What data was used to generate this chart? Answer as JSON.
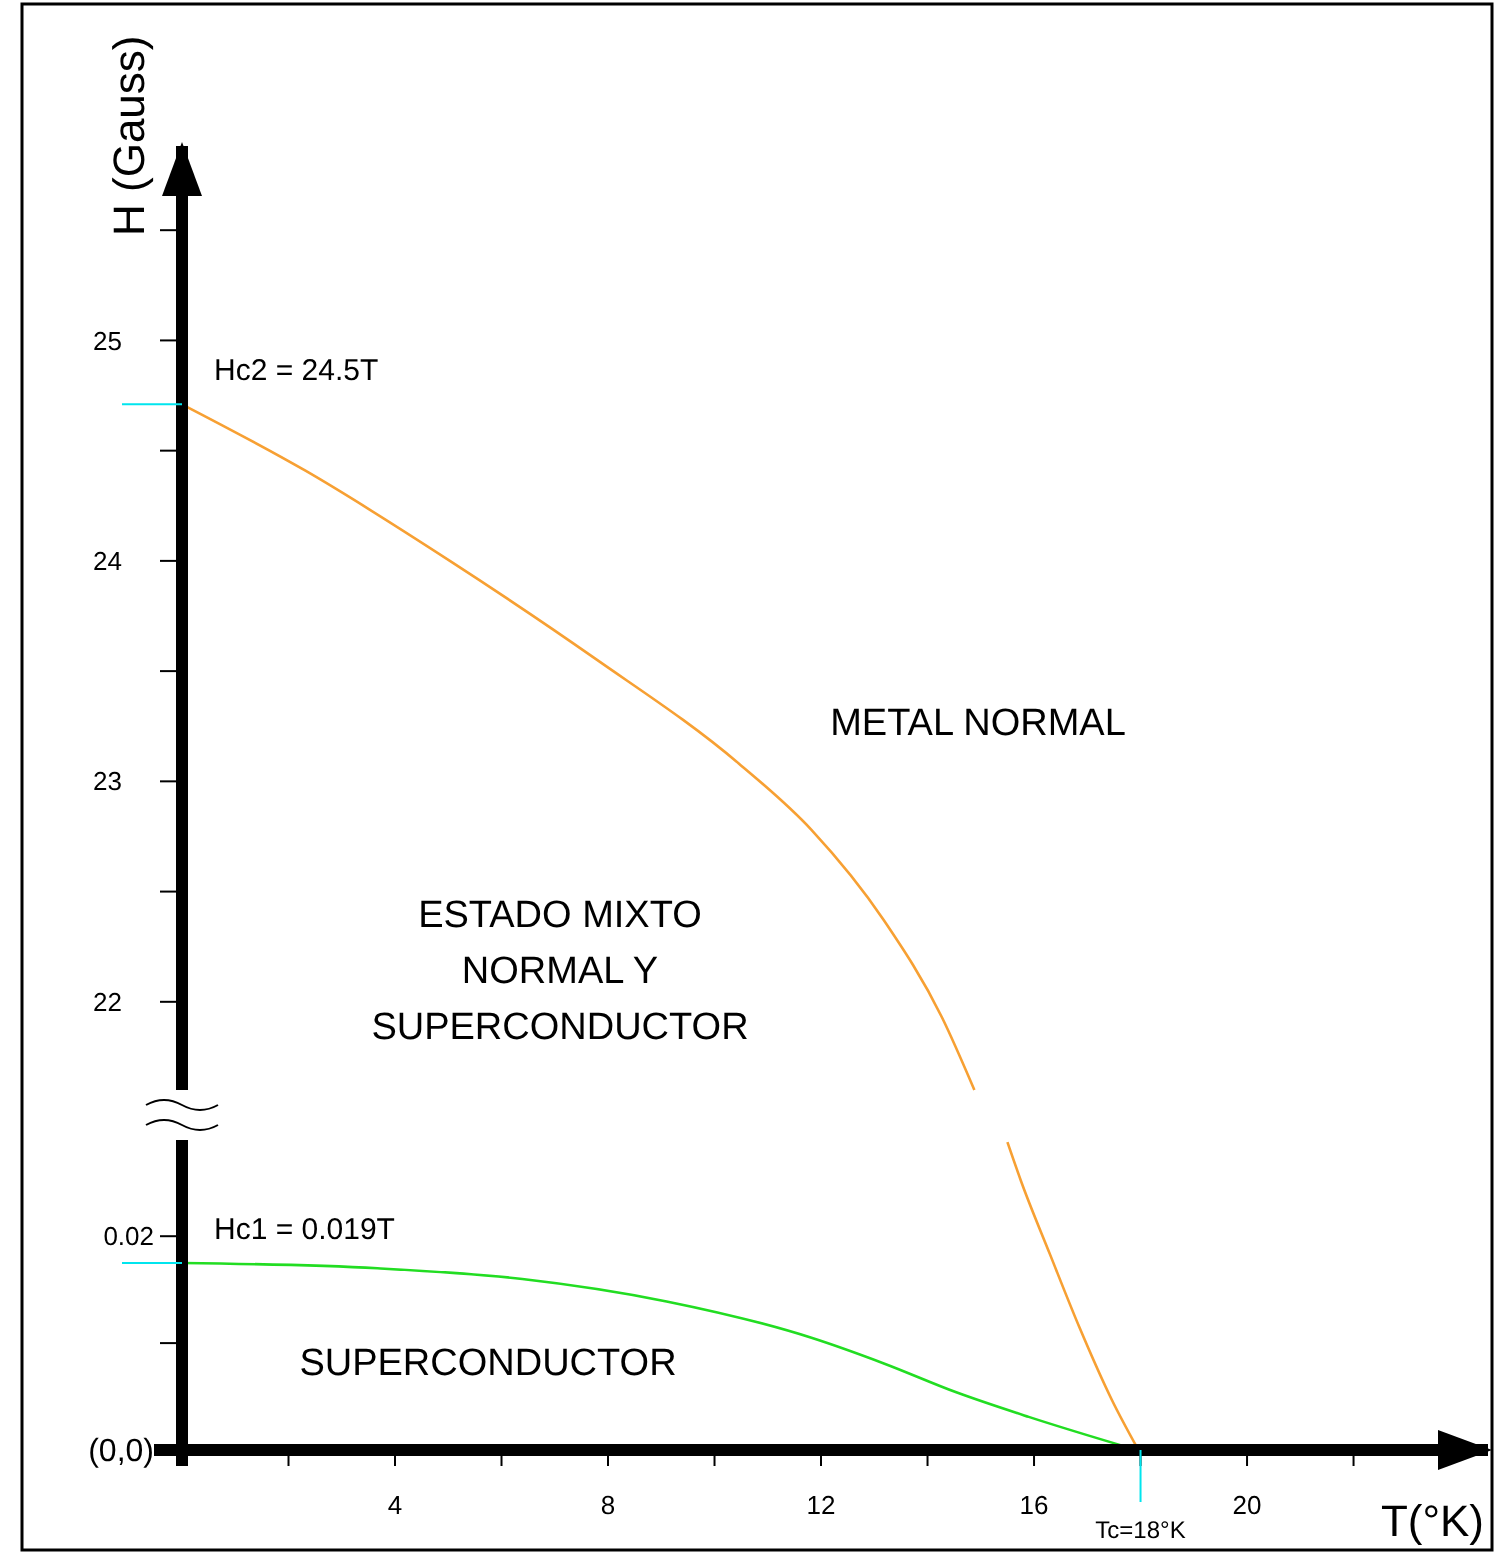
{
  "chart_data": [
    {
      "type": "line",
      "ylabel": "H (Gauss)",
      "xlim": [
        0,
        24.6
      ],
      "ylim": [
        21.6,
        25.9
      ],
      "tick_labels": "y",
      "marker": "none",
      "grid": false,
      "yticks": [
        22,
        {
          "value": 22.5,
          "label": null
        },
        23,
        {
          "value": 23.5,
          "label": null
        },
        24,
        {
          "value": 24.5,
          "label": null
        },
        25,
        {
          "value": 25.5,
          "label": null
        }
      ],
      "series": [
        {
          "color": "#f7a033",
          "x": [
            0,
            2.31,
            5.03,
            7.74,
            10.46,
            11.82,
            13.18,
            14.27,
            14.88
          ],
          "values": [
            24.71,
            24.41,
            24.0,
            23.56,
            23.08,
            22.78,
            22.37,
            21.93,
            21.6
          ]
        }
      ],
      "annotations": [
        {
          "text": "Hc2 = 24.5T",
          "x": 0,
          "y": 24.71
        },
        "METAL NORMAL",
        "ESTADO MIXTO\nNORMAL Y\nSUPERCONDUCTOR"
      ]
    },
    {
      "type": "line",
      "xlabel": "T(°K)",
      "xlim": [
        0,
        24.6
      ],
      "ylim": [
        0,
        0.029
      ],
      "marker": "none",
      "grid": false,
      "xticks": [
        {
          "value": 2,
          "label": null
        },
        4,
        {
          "value": 6,
          "label": null
        },
        8,
        {
          "value": 10,
          "label": null
        },
        12,
        {
          "value": 14,
          "label": null
        },
        16,
        {
          "value": 18,
          "label": null
        },
        20,
        {
          "value": 22,
          "label": null
        }
      ],
      "yticks": [
        {
          "value": 0,
          "label": "(0,0)"
        },
        {
          "value": 0.01,
          "label": null
        },
        0.02
      ],
      "series": [
        {
          "color": "#f7a033",
          "x": [
            15.5,
            15.76,
            16.3,
            16.85,
            17.46,
            17.96
          ],
          "values": [
            0.0288,
            0.0251,
            0.0183,
            0.0115,
            0.0047,
            0
          ]
        },
        {
          "color": "#22dd22",
          "x": [
            0,
            3.67,
            6.39,
            9.1,
            11.82,
            13.18,
            14.54,
            15.9,
            17.93
          ],
          "values": [
            0.0175,
            0.017,
            0.016,
            0.0139,
            0.0105,
            0.0081,
            0.0054,
            0.0031,
            0
          ]
        }
      ],
      "ref_lines": [
        {
          "axis": "x",
          "value": 18,
          "label": "Tc=18°K",
          "color": "#00e5ee"
        }
      ],
      "annotations": [
        {
          "text": "Hc1 = 0.019T",
          "x": 0,
          "y": 0.0175
        },
        "SUPERCONDUCTOR"
      ]
    }
  ]
}
